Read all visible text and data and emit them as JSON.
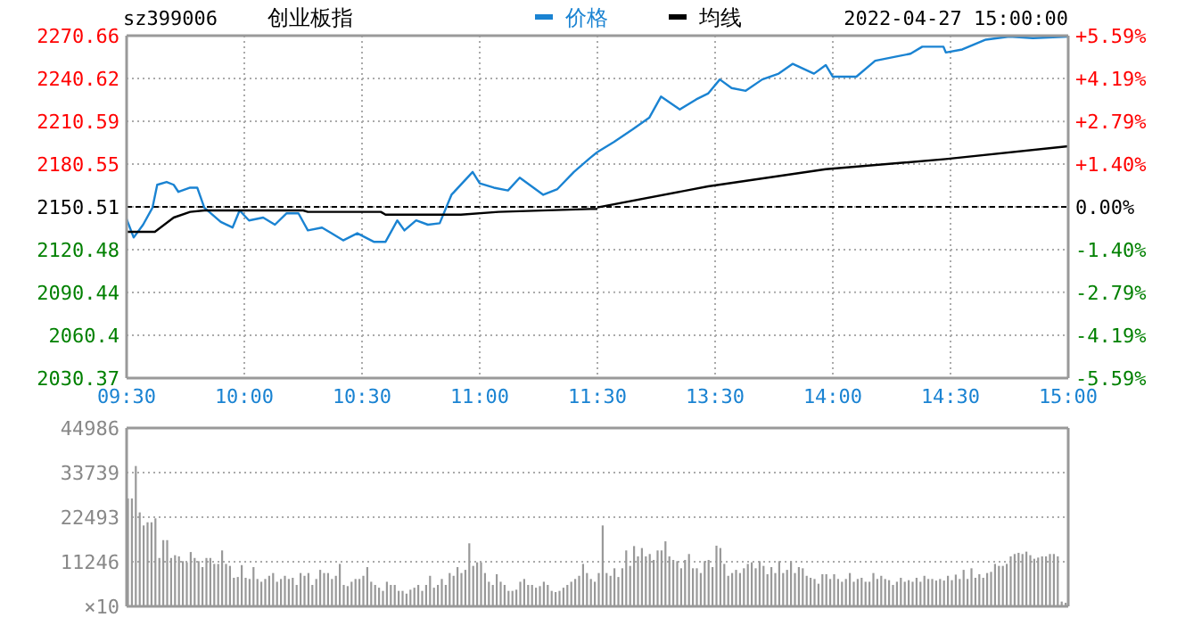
{
  "chart_data": [
    {
      "type": "line",
      "title": "创业板指",
      "subtitle": "sz399006",
      "legend": "top",
      "grid": true,
      "xlim": [
        9.5,
        11.5
      ],
      "xticks": [
        {
          "value": 9.5,
          "label": "09:30"
        },
        {
          "value": 10,
          "label": "10:00"
        },
        {
          "value": 10.5,
          "label": "10:30"
        },
        {
          "value": 11,
          "label": "11:00"
        },
        {
          "value": 11.5,
          "label": "11:30"
        }
      ],
      "ylim": [
        2030.37,
        2270.66
      ],
      "yticks": [
        2030.37,
        2060.4,
        2090.44,
        2120.48,
        2150.51,
        2180.55,
        2210.59,
        2240.62,
        2270.66
      ],
      "ref_lines": [
        {
          "axis": "y",
          "value": 2150.51,
          "color": "#000000",
          "line_style": "dashed"
        }
      ],
      "series": [
        {
          "name": "价格",
          "color": "#1a83d2",
          "x": [
            9.5,
            9.53,
            9.57,
            9.61,
            9.63,
            9.67,
            9.7,
            9.72,
            9.77,
            9.8,
            9.83,
            9.9,
            9.95,
            9.98,
            10.02,
            10.08,
            10.13,
            10.18,
            10.23,
            10.27,
            10.33,
            10.37,
            10.42,
            10.48,
            10.55,
            10.6,
            10.65,
            10.68,
            10.73,
            10.78,
            10.83,
            10.88,
            10.97,
            11,
            11.06,
            11.12,
            11.17,
            11.27,
            11.33,
            11.4,
            11.47,
            11.5
          ],
          "values": [
            2142,
            2129,
            2138,
            2150,
            2166,
            2168,
            2166,
            2161,
            2164,
            2164,
            2150,
            2140,
            2136,
            2148,
            2141,
            2143,
            2138,
            2146,
            2146,
            2134,
            2136,
            2132,
            2127,
            2132,
            2126,
            2126,
            2141,
            2134,
            2141,
            2138,
            2139,
            2159,
            2175,
            2167,
            2164,
            2162,
            2171,
            2159,
            2163,
            2175,
            2185,
            2189
          ]
        },
        {
          "name": "均线",
          "color": "#000000",
          "x": [
            9.5,
            9.62,
            9.7,
            9.77,
            9.83,
            10.25,
            10.27,
            10.58,
            10.6,
            10.92,
            11.08,
            11.47,
            11.5
          ],
          "values": [
            2133,
            2133,
            2143,
            2147,
            2148,
            2148,
            2147,
            2147,
            2145,
            2145,
            2147,
            2149,
            2149
          ]
        }
      ]
    },
    {
      "type": "line",
      "annotations": [
        "2022-04-27 15:00:00"
      ],
      "grid": true,
      "xlim": [
        13,
        15
      ],
      "xticks": [
        {
          "value": 13.5,
          "label": "13:30"
        },
        {
          "value": 14,
          "label": "14:00"
        },
        {
          "value": 14.5,
          "label": "14:30"
        },
        {
          "value": 15,
          "label": "15:00"
        }
      ],
      "y2lim": [
        -5.59,
        5.59
      ],
      "y2ticks": [
        {
          "value": -5.59,
          "label": "-5.59%"
        },
        {
          "value": -4.19,
          "label": "-4.19%"
        },
        {
          "value": -2.79,
          "label": "-2.79%"
        },
        {
          "value": -1.4,
          "label": "-1.40%"
        },
        {
          "value": 0,
          "label": "0.00%"
        },
        {
          "value": 1.4,
          "label": "+1.40%"
        },
        {
          "value": 2.79,
          "label": "+2.79%"
        },
        {
          "value": 4.19,
          "label": "+4.19%"
        },
        {
          "value": 5.59,
          "label": "+5.59%"
        }
      ],
      "ref_lines": [
        {
          "axis": "y2",
          "value": 0,
          "color": "#000000",
          "line_style": "dashed"
        }
      ],
      "series": [
        {
          "color": "#1a83d2",
          "axis": "y2",
          "x": [
            13,
            13.07,
            13.15,
            13.22,
            13.27,
            13.35,
            13.42,
            13.47,
            13.52,
            13.57,
            13.63,
            13.7,
            13.77,
            13.83,
            13.92,
            13.97,
            14,
            14.1,
            14.18,
            14.27,
            14.33,
            14.38,
            14.47,
            14.48,
            14.55,
            14.65,
            14.75,
            14.85,
            15
          ],
          "values": [
            1.79,
            2.12,
            2.53,
            2.91,
            3.6,
            3.18,
            3.51,
            3.7,
            4.16,
            3.88,
            3.79,
            4.16,
            4.35,
            4.67,
            4.35,
            4.63,
            4.25,
            4.25,
            4.77,
            4.91,
            5.0,
            5.23,
            5.23,
            5.04,
            5.14,
            5.46,
            5.56,
            5.51,
            5.56
          ]
        },
        {
          "color": "#000000",
          "axis": "y2",
          "x": [
            13,
            13.47,
            13.97,
            14.48,
            15
          ],
          "values": [
            -0.02,
            0.67,
            1.23,
            1.56,
            1.98
          ]
        }
      ]
    },
    {
      "type": "bar",
      "color": "#999999",
      "grid": "y",
      "tick_labels": "y",
      "ylabel": "×10",
      "ylim": [
        0,
        44986
      ],
      "yticks": [
        11246,
        22493,
        33739,
        44986
      ],
      "categories": [
        null,
        null,
        null,
        null,
        null,
        null,
        null,
        null,
        null,
        null,
        null,
        null,
        null,
        null,
        null,
        null,
        null,
        null,
        null,
        null,
        null,
        null,
        null,
        null,
        null,
        null,
        null,
        null,
        null,
        null,
        null,
        null,
        null,
        null,
        null,
        null,
        null,
        null,
        null,
        null,
        null,
        null,
        null,
        null,
        null,
        null,
        null,
        null,
        null,
        null,
        null,
        null,
        null,
        null,
        null,
        null,
        null,
        null,
        null,
        null,
        null,
        null,
        null,
        null,
        null,
        null,
        null,
        null,
        null,
        null,
        null,
        null,
        null,
        null,
        null,
        null,
        null,
        null,
        null,
        null,
        null,
        null,
        null,
        null,
        null,
        null,
        null,
        null,
        null,
        null,
        null,
        null,
        null,
        null,
        null,
        null,
        null,
        null,
        null,
        null,
        null,
        null,
        null,
        null,
        null,
        null,
        null,
        null,
        null,
        null,
        null,
        null,
        null,
        null,
        null,
        null,
        null,
        null,
        null,
        null,
        null,
        null,
        null,
        null,
        null,
        null,
        null,
        null,
        null,
        null,
        null,
        null,
        null,
        null,
        null,
        null,
        null,
        null,
        null,
        null,
        null,
        null,
        null,
        null,
        null,
        null,
        null,
        null,
        null,
        null,
        null,
        null,
        null,
        null,
        null,
        null,
        null,
        null,
        null,
        null,
        null,
        null,
        null,
        null,
        null,
        null,
        null,
        null,
        null,
        null,
        null,
        null,
        null,
        null,
        null,
        null,
        null,
        null,
        null,
        null,
        null,
        null,
        null,
        null,
        null,
        null,
        null,
        null,
        null,
        null,
        null,
        null,
        null,
        null,
        null,
        null,
        null,
        null,
        null,
        null,
        null,
        null,
        null,
        null,
        null,
        null,
        null,
        null,
        null,
        null,
        null,
        null,
        null,
        null,
        null,
        null,
        null,
        null,
        null,
        null,
        null,
        null,
        null,
        null,
        null,
        null,
        null,
        null,
        null,
        null,
        null,
        null,
        null,
        null,
        null,
        null,
        null,
        null,
        null,
        null
      ],
      "values": [
        27200,
        27200,
        35400,
        23700,
        20400,
        21200,
        21200,
        22200,
        12200,
        16700,
        16700,
        12200,
        12900,
        12600,
        11400,
        11100,
        13700,
        12200,
        11400,
        9900,
        12200,
        12200,
        10700,
        10700,
        14100,
        10700,
        10200,
        7200,
        7400,
        10400,
        7200,
        6900,
        9900,
        6900,
        6200,
        6900,
        7700,
        8400,
        6200,
        6900,
        7700,
        6900,
        7200,
        5400,
        8400,
        7700,
        8400,
        5400,
        6900,
        9200,
        8400,
        8400,
        6900,
        7700,
        10700,
        5400,
        5100,
        6200,
        6900,
        6900,
        7700,
        9900,
        6200,
        5400,
        4700,
        3900,
        6200,
        5400,
        5400,
        3900,
        3900,
        3200,
        4200,
        4700,
        5400,
        3900,
        5400,
        7700,
        4700,
        5400,
        6900,
        5400,
        8400,
        7700,
        9900,
        8400,
        9200,
        15900,
        10200,
        11100,
        11100,
        8400,
        6200,
        5400,
        8100,
        6200,
        5400,
        3900,
        3900,
        4200,
        6200,
        6900,
        5400,
        5400,
        4700,
        5100,
        6200,
        5400,
        3900,
        3600,
        3900,
        4700,
        5400,
        6200,
        6900,
        7700,
        10700,
        8400,
        6900,
        6200,
        8400,
        20400,
        8400,
        7700,
        9600,
        7400,
        9600,
        14100,
        10200,
        15200,
        12600,
        14700,
        12600,
        13200,
        11700,
        14100,
        14100,
        16400,
        12600,
        11700,
        11400,
        9600,
        11700,
        13200,
        9600,
        9600,
        8400,
        11400,
        11700,
        9900,
        15300,
        14700,
        10700,
        7700,
        8400,
        9200,
        8400,
        9600,
        10700,
        11100,
        9600,
        11400,
        10200,
        8100,
        9900,
        8400,
        11400,
        8400,
        9200,
        11400,
        8400,
        9900,
        9600,
        7700,
        7200,
        6900,
        5700,
        8100,
        8100,
        6900,
        8100,
        6900,
        6200,
        6900,
        8400,
        6200,
        6900,
        7200,
        6200,
        6200,
        8400,
        6900,
        7700,
        6900,
        6600,
        5400,
        6200,
        7200,
        6200,
        6600,
        6200,
        7200,
        6200,
        7700,
        6900,
        6900,
        6500,
        6900,
        6500,
        7700,
        6600,
        8000,
        6900,
        9200,
        6900,
        9600,
        7200,
        8100,
        7200,
        8400,
        8700,
        10700,
        10200,
        10200,
        10700,
        12600,
        13200,
        13500,
        13200,
        13800,
        12900,
        12000,
        12300,
        12600,
        12600,
        13200,
        13200,
        12600,
        1200,
        900
      ]
    }
  ]
}
